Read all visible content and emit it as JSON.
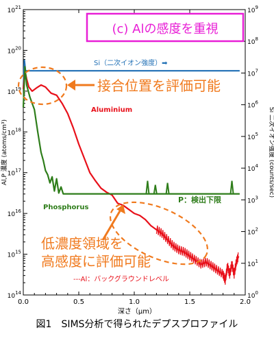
{
  "caption": "図1　SIMS分析で得られたデプスプロファイル",
  "chart_data": {
    "type": "line",
    "title_box": "(c)  Alの感度を重視",
    "xlabel": "深さ（μm）",
    "ylabel_left": "Al,P 濃度 (atoms/cm³)",
    "ylabel_right": "Si 二次イオン強度 (counts/sec)",
    "xlim": [
      0,
      2.0
    ],
    "ylim_left_log": [
      14,
      21
    ],
    "ylim_right_log": [
      0,
      9
    ],
    "x_ticks": [
      "0.0",
      "0.5",
      "1.0",
      "1.5",
      "2.0"
    ],
    "y_ticks_left": [
      {
        "base": "10",
        "exp": "14"
      },
      {
        "base": "10",
        "exp": "15"
      },
      {
        "base": "10",
        "exp": "16"
      },
      {
        "base": "10",
        "exp": "17"
      },
      {
        "base": "10",
        "exp": "18"
      },
      {
        "base": "10",
        "exp": "19"
      },
      {
        "base": "10",
        "exp": "20"
      },
      {
        "base": "10",
        "exp": "21"
      }
    ],
    "y_ticks_right": [
      {
        "base": "10",
        "exp": "0"
      },
      {
        "base": "10",
        "exp": "1"
      },
      {
        "base": "10",
        "exp": "2"
      },
      {
        "base": "10",
        "exp": "3"
      },
      {
        "base": "10",
        "exp": "4"
      },
      {
        "base": "10",
        "exp": "5"
      },
      {
        "base": "10",
        "exp": "6"
      },
      {
        "base": "10",
        "exp": "7"
      },
      {
        "base": "10",
        "exp": "8"
      },
      {
        "base": "10",
        "exp": "9"
      }
    ],
    "colors": {
      "si": "#1f6fb5",
      "al": "#e8101a",
      "p": "#2e7d1a",
      "annot": "#f07a1e",
      "box": "#e81fd6"
    },
    "series": [
      {
        "name": "Si（二次イオン強度）",
        "axis": "right",
        "x": [
          0.0,
          0.01,
          0.02,
          0.05,
          0.1,
          0.5,
          1.0,
          1.5,
          1.95
        ],
        "log_y": [
          6.5,
          7.4,
          7.07,
          7.07,
          7.07,
          7.07,
          7.07,
          7.07,
          7.07
        ]
      },
      {
        "name": "Aluminium",
        "axis": "left",
        "x": [
          0.0,
          0.015,
          0.03,
          0.05,
          0.08,
          0.12,
          0.16,
          0.2,
          0.25,
          0.3,
          0.35,
          0.4,
          0.45,
          0.5,
          0.55,
          0.6,
          0.65,
          0.7,
          0.75,
          0.8,
          0.85,
          0.9,
          0.95,
          1.0,
          1.05,
          1.1,
          1.15,
          1.2,
          1.25,
          1.3,
          1.35,
          1.4,
          1.45,
          1.5,
          1.55,
          1.6,
          1.65,
          1.7,
          1.75,
          1.8,
          1.82,
          1.84,
          1.86,
          1.88,
          1.9,
          1.92,
          1.94
        ],
        "log_y": [
          19.05,
          19.5,
          19.3,
          19.1,
          19.0,
          19.08,
          19.15,
          19.1,
          18.95,
          18.9,
          18.7,
          18.45,
          18.1,
          17.7,
          17.35,
          17.0,
          16.8,
          16.62,
          16.52,
          16.45,
          16.25,
          16.2,
          16.1,
          16.0,
          15.95,
          15.85,
          15.7,
          15.6,
          15.5,
          15.35,
          15.2,
          15.1,
          15.05,
          14.95,
          14.85,
          14.75,
          14.8,
          14.7,
          14.6,
          14.5,
          14.35,
          14.7,
          14.5,
          14.75,
          14.5,
          14.8,
          14.95
        ]
      },
      {
        "name": "Phosphorus",
        "axis": "left",
        "x": [
          0.0,
          0.015,
          0.03,
          0.06,
          0.1,
          0.13,
          0.16,
          0.18,
          0.2,
          0.22,
          0.24,
          0.26,
          0.28,
          0.3,
          0.32,
          0.34,
          0.36,
          0.4,
          1.95
        ],
        "log_y": [
          18.6,
          19.6,
          19.15,
          18.85,
          18.55,
          18.0,
          17.5,
          17.3,
          17.05,
          16.95,
          16.75,
          16.9,
          16.55,
          16.85,
          16.5,
          16.65,
          16.48,
          16.48,
          16.48
        ]
      }
    ],
    "p_spikes": [
      {
        "x": 1.12,
        "log_y": 16.8
      },
      {
        "x": 1.19,
        "log_y": 16.7
      },
      {
        "x": 1.3,
        "log_y": 16.75
      },
      {
        "x": 1.88,
        "log_y": 16.8
      }
    ],
    "labels": {
      "si": "Si（二次イオン強度）➡",
      "aluminium": "Aluminium",
      "phosphorus": "Phosphorus",
      "p_limit": "P：検出下限",
      "al_background": "---Al：バックグラウンドレベル"
    },
    "annotations": {
      "junction": "接合位置を評価可能",
      "low_conc_1": "低濃度領域を",
      "low_conc_2": "高感度に評価可能"
    },
    "grid": false,
    "legend": "none"
  }
}
